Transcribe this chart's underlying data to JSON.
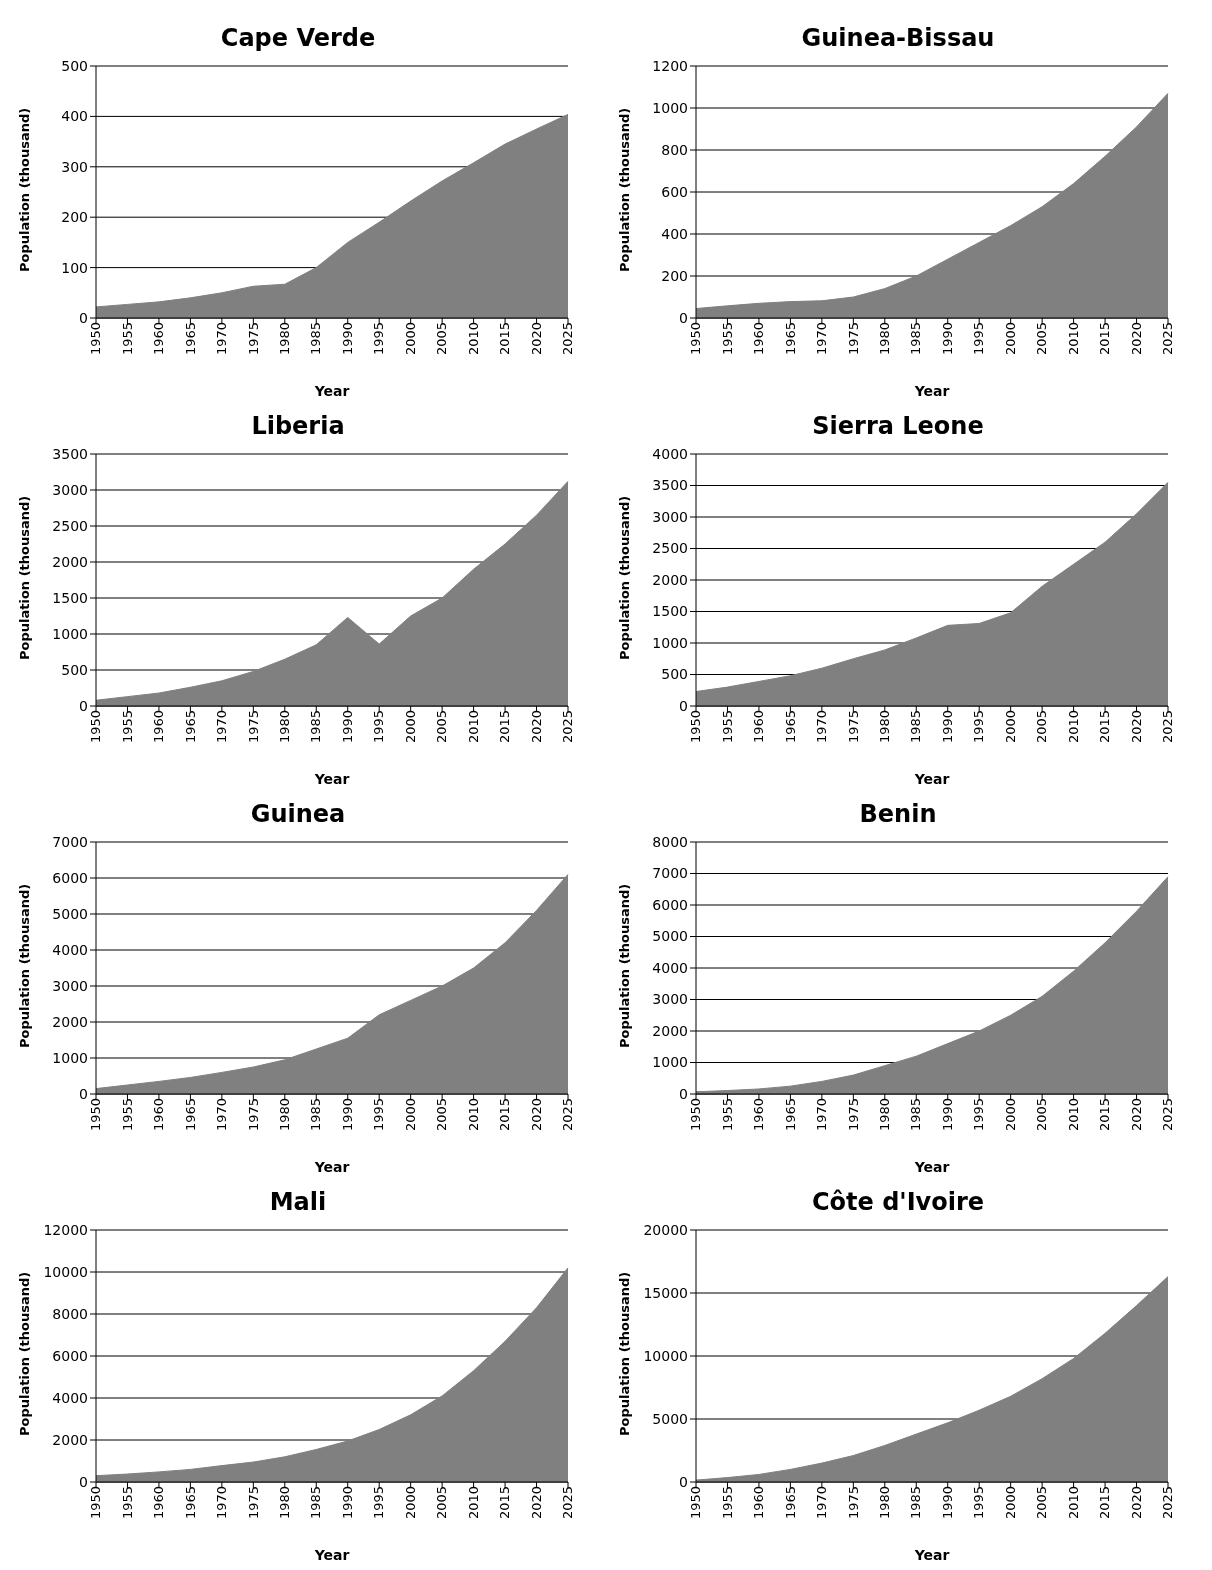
{
  "chart_data": [
    {
      "type": "area",
      "title": "Cape Verde",
      "xlabel": "Year",
      "ylabel": "Population (thousand)",
      "categories": [
        "1950",
        "1955",
        "1960",
        "1965",
        "1970",
        "1975",
        "1980",
        "1985",
        "1990",
        "1995",
        "2000",
        "2005",
        "2010",
        "2015",
        "2020",
        "2025"
      ],
      "series": [
        {
          "color": "#808080",
          "values": [
            22,
            27,
            32,
            40,
            50,
            63,
            67,
            100,
            150,
            190,
            232,
            272,
            308,
            345,
            375,
            404
          ]
        }
      ],
      "ylim": [
        0,
        500
      ],
      "yticks": [
        0,
        100,
        200,
        300,
        400,
        500
      ],
      "grid": "y",
      "legend": false
    },
    {
      "type": "area",
      "title": "Guinea-Bissau",
      "xlabel": "Year",
      "ylabel": "Population (thousand)",
      "categories": [
        "1950",
        "1955",
        "1960",
        "1965",
        "1970",
        "1975",
        "1980",
        "1985",
        "1990",
        "1995",
        "2000",
        "2005",
        "2010",
        "2015",
        "2020",
        "2025"
      ],
      "series": [
        {
          "color": "#808080",
          "values": [
            45,
            58,
            70,
            78,
            82,
            100,
            140,
            200,
            280,
            360,
            440,
            530,
            640,
            770,
            910,
            1070
          ]
        }
      ],
      "ylim": [
        0,
        1200
      ],
      "yticks": [
        0,
        200,
        400,
        600,
        800,
        1000,
        1200
      ],
      "grid": "y",
      "legend": false
    },
    {
      "type": "area",
      "title": "Liberia",
      "xlabel": "Year",
      "ylabel": "Population (thousand)",
      "categories": [
        "1950",
        "1955",
        "1960",
        "1965",
        "1970",
        "1975",
        "1980",
        "1985",
        "1990",
        "1995",
        "2000",
        "2005",
        "2010",
        "2015",
        "2020",
        "2025"
      ],
      "series": [
        {
          "color": "#808080",
          "values": [
            80,
            130,
            180,
            260,
            350,
            480,
            650,
            850,
            1230,
            860,
            1250,
            1500,
            1900,
            2250,
            2650,
            3120
          ]
        }
      ],
      "ylim": [
        0,
        3500
      ],
      "yticks": [
        0,
        500,
        1000,
        1500,
        2000,
        2500,
        3000,
        3500
      ],
      "grid": "y",
      "legend": false
    },
    {
      "type": "area",
      "title": "Sierra Leone",
      "xlabel": "Year",
      "ylabel": "Population (thousand)",
      "categories": [
        "1950",
        "1955",
        "1960",
        "1965",
        "1970",
        "1975",
        "1980",
        "1985",
        "1990",
        "1995",
        "2000",
        "2005",
        "2010",
        "2015",
        "2020",
        "2025"
      ],
      "series": [
        {
          "color": "#808080",
          "values": [
            230,
            300,
            390,
            480,
            600,
            750,
            890,
            1080,
            1280,
            1310,
            1480,
            1900,
            2250,
            2600,
            3050,
            3550
          ]
        }
      ],
      "ylim": [
        0,
        4000
      ],
      "yticks": [
        0,
        500,
        1000,
        1500,
        2000,
        2500,
        3000,
        3500,
        4000
      ],
      "grid": "y",
      "legend": false
    },
    {
      "type": "area",
      "title": "Guinea",
      "xlabel": "Year",
      "ylabel": "Population (thousand)",
      "categories": [
        "1950",
        "1955",
        "1960",
        "1965",
        "1970",
        "1975",
        "1980",
        "1985",
        "1990",
        "1995",
        "2000",
        "2005",
        "2010",
        "2015",
        "2020",
        "2025"
      ],
      "series": [
        {
          "color": "#808080",
          "values": [
            150,
            250,
            350,
            460,
            600,
            750,
            950,
            1250,
            1550,
            2200,
            2600,
            3000,
            3500,
            4200,
            5100,
            6100
          ]
        }
      ],
      "ylim": [
        0,
        7000
      ],
      "yticks": [
        0,
        1000,
        2000,
        3000,
        4000,
        5000,
        6000,
        7000
      ],
      "grid": "y",
      "legend": false
    },
    {
      "type": "area",
      "title": "Benin",
      "xlabel": "Year",
      "ylabel": "Population (thousand)",
      "categories": [
        "1950",
        "1955",
        "1960",
        "1965",
        "1970",
        "1975",
        "1980",
        "1985",
        "1990",
        "1995",
        "2000",
        "2005",
        "2010",
        "2015",
        "2020",
        "2025"
      ],
      "series": [
        {
          "color": "#808080",
          "values": [
            70,
            110,
            160,
            250,
            400,
            600,
            900,
            1200,
            1600,
            2000,
            2500,
            3100,
            3900,
            4800,
            5800,
            6900
          ]
        }
      ],
      "ylim": [
        0,
        8000
      ],
      "yticks": [
        0,
        1000,
        2000,
        3000,
        4000,
        5000,
        6000,
        7000,
        8000
      ],
      "grid": "y",
      "legend": false
    },
    {
      "type": "area",
      "title": "Mali",
      "xlabel": "Year",
      "ylabel": "Population (thousand)",
      "categories": [
        "1950",
        "1955",
        "1960",
        "1965",
        "1970",
        "1975",
        "1980",
        "1985",
        "1990",
        "1995",
        "2000",
        "2005",
        "2010",
        "2015",
        "2020",
        "2025"
      ],
      "series": [
        {
          "color": "#808080",
          "values": [
            300,
            380,
            480,
            600,
            780,
            950,
            1200,
            1550,
            1950,
            2500,
            3200,
            4100,
            5300,
            6700,
            8300,
            10200
          ]
        }
      ],
      "ylim": [
        0,
        12000
      ],
      "yticks": [
        0,
        2000,
        4000,
        6000,
        8000,
        10000,
        12000
      ],
      "grid": "y",
      "legend": false
    },
    {
      "type": "area",
      "title": "Côte d'Ivoire",
      "xlabel": "Year",
      "ylabel": "Population (thousand)",
      "categories": [
        "1950",
        "1955",
        "1960",
        "1965",
        "1970",
        "1975",
        "1980",
        "1985",
        "1990",
        "1995",
        "2000",
        "2005",
        "2010",
        "2015",
        "2020",
        "2025"
      ],
      "series": [
        {
          "color": "#808080",
          "values": [
            150,
            350,
            600,
            1000,
            1500,
            2100,
            2900,
            3800,
            4700,
            5700,
            6800,
            8200,
            9800,
            11800,
            14000,
            16300
          ]
        }
      ],
      "ylim": [
        0,
        20000
      ],
      "yticks": [
        0,
        5000,
        10000,
        15000,
        20000
      ],
      "grid": "y",
      "legend": false
    }
  ]
}
